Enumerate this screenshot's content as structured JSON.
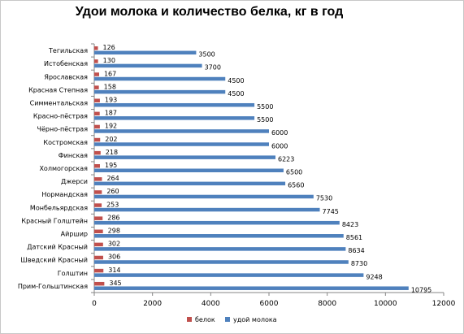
{
  "chart_data": {
    "type": "bar",
    "orientation": "horizontal",
    "title": "Удои молока и количество белка, кг в год",
    "xlabel": "",
    "ylabel": "",
    "xlim": [
      0,
      12000
    ],
    "x_ticks": [
      0,
      2000,
      4000,
      6000,
      8000,
      10000,
      12000
    ],
    "grid": false,
    "legend_position": "bottom",
    "categories": [
      "Тегильская",
      "Истобенская",
      "Ярославская",
      "Красная Степная",
      "Симментальская",
      "Красно-пёстрая",
      "Чёрно-пёстрая",
      "Костромская",
      "Финская",
      "Холмогорская",
      "Джерси",
      "Нормандская",
      "Монбельярдская",
      "Красный Голштейн",
      "Айршир",
      "Датский Красный",
      "Шведский Красный",
      "Голштин",
      "Прим-Гольштинская"
    ],
    "series": [
      {
        "name": "белок",
        "color": "#c0504d",
        "values": [
          126,
          130,
          167,
          158,
          193,
          187,
          192,
          202,
          218,
          195,
          264,
          260,
          253,
          286,
          298,
          302,
          306,
          314,
          345
        ]
      },
      {
        "name": "удой молока",
        "color": "#4f81bd",
        "values": [
          3500,
          3700,
          4500,
          4500,
          5500,
          5500,
          6000,
          6000,
          6223,
          6500,
          6560,
          7530,
          7745,
          8423,
          8561,
          8634,
          8730,
          9248,
          10795
        ]
      }
    ]
  }
}
